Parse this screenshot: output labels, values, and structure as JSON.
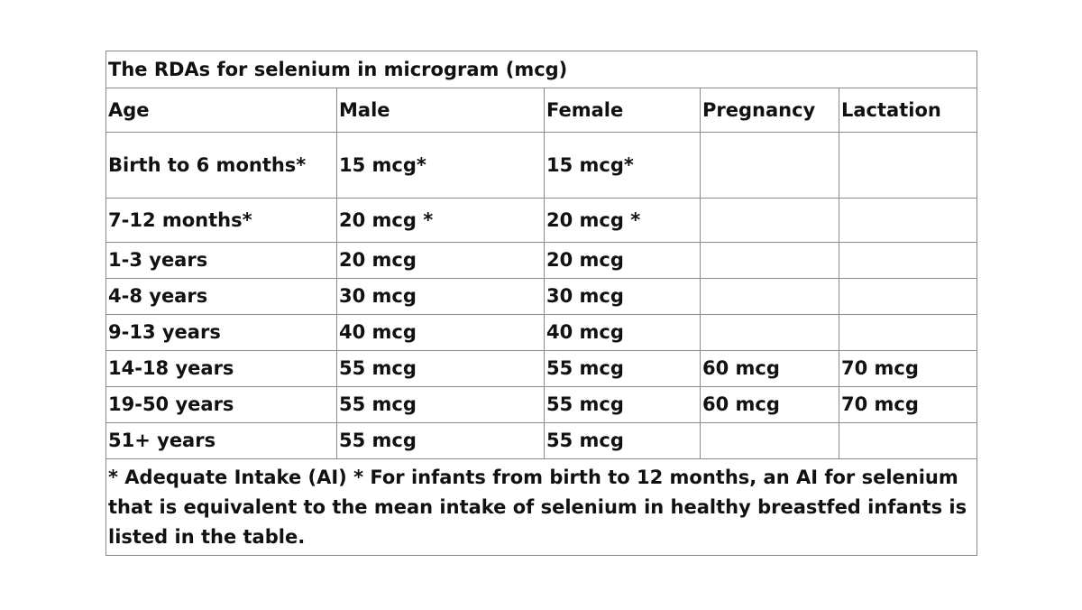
{
  "table": {
    "title": "The RDAs for selenium in microgram (mcg)",
    "headers": [
      "Age",
      "Male",
      "Female",
      "Pregnancy",
      "Lactation"
    ],
    "rows": [
      [
        "Birth to 6 months*",
        "15 mcg*",
        "15 mcg*",
        "",
        ""
      ],
      [
        "7-12 months*",
        "20 mcg *",
        "20 mcg *",
        "",
        ""
      ],
      [
        "1-3 years",
        "20 mcg",
        "20 mcg",
        "",
        ""
      ],
      [
        "4-8 years",
        "30 mcg",
        "30 mcg",
        "",
        ""
      ],
      [
        "9-13 years",
        "40 mcg",
        "40 mcg",
        "",
        ""
      ],
      [
        "14-18 years",
        "55 mcg",
        "55 mcg",
        "60 mcg",
        "70 mcg"
      ],
      [
        "19-50 years",
        "55 mcg",
        "55 mcg",
        "60 mcg",
        "70 mcg"
      ],
      [
        "51+ years",
        "55 mcg",
        "55 mcg",
        "",
        ""
      ]
    ],
    "footnote": "* Adequate Intake (AI) * For infants from birth to 12 months, an AI for selenium that is equivalent to the mean intake of selenium in healthy breastfed infants is listed in the table."
  }
}
